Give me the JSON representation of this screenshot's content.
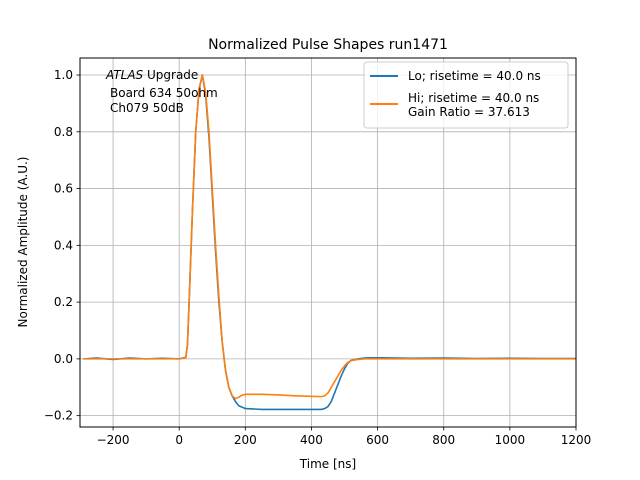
{
  "chart_data": {
    "type": "line",
    "title": "Normalized Pulse Shapes run1471",
    "xlabel": "Time [ns]",
    "ylabel": "Normalized Amplitude (A.U.)",
    "xlim": [
      -300,
      1200
    ],
    "ylim": [
      -0.24,
      1.06
    ],
    "xticks": [
      -200,
      0,
      200,
      400,
      600,
      800,
      1000,
      1200
    ],
    "xtick_labels": [
      "−200",
      "0",
      "200",
      "400",
      "600",
      "800",
      "1000",
      "1200"
    ],
    "yticks": [
      -0.2,
      0.0,
      0.2,
      0.4,
      0.6,
      0.8,
      1.0
    ],
    "ytick_labels": [
      "−0.2",
      "0.0",
      "0.2",
      "0.4",
      "0.6",
      "0.8",
      "1.0"
    ],
    "grid": true,
    "legend_position": "top-right",
    "annotation": {
      "line1_italic": "ATLAS",
      "line1_rest": " Upgrade",
      "line2": "Board 634 50ohm",
      "line3": "Ch079 50dB"
    },
    "series": [
      {
        "name": "Lo; risetime = 40.0 ns",
        "color": "#1f77b4",
        "x": [
          -290,
          -250,
          -200,
          -150,
          -100,
          -50,
          0,
          20,
          25,
          30,
          40,
          50,
          60,
          70,
          80,
          90,
          100,
          110,
          120,
          130,
          140,
          150,
          160,
          170,
          180,
          190,
          200,
          250,
          300,
          350,
          400,
          430,
          440,
          450,
          460,
          470,
          480,
          490,
          500,
          510,
          520,
          540,
          560,
          580,
          600,
          700,
          800,
          900,
          1000,
          1100,
          1200
        ],
        "y": [
          0.0,
          0.003,
          -0.002,
          0.003,
          0.0,
          0.002,
          0.0,
          0.005,
          0.05,
          0.2,
          0.52,
          0.8,
          0.95,
          1.0,
          0.93,
          0.78,
          0.58,
          0.38,
          0.2,
          0.06,
          -0.04,
          -0.1,
          -0.13,
          -0.15,
          -0.165,
          -0.17,
          -0.175,
          -0.178,
          -0.178,
          -0.178,
          -0.178,
          -0.178,
          -0.175,
          -0.168,
          -0.15,
          -0.12,
          -0.09,
          -0.06,
          -0.035,
          -0.015,
          -0.005,
          0.0,
          0.003,
          0.004,
          0.004,
          0.002,
          0.003,
          0.001,
          0.002,
          0.001,
          0.001
        ]
      },
      {
        "name": "Hi; risetime = 40.0 ns\n Gain Ratio = 37.613",
        "color": "#ff7f0e",
        "x": [
          -290,
          -250,
          -200,
          -150,
          -100,
          -50,
          0,
          20,
          25,
          30,
          40,
          50,
          60,
          70,
          80,
          90,
          100,
          110,
          120,
          130,
          140,
          150,
          160,
          170,
          180,
          190,
          200,
          250,
          300,
          350,
          400,
          430,
          440,
          450,
          460,
          470,
          480,
          490,
          500,
          510,
          520,
          540,
          560,
          580,
          600,
          700,
          800,
          900,
          1000,
          1100,
          1200
        ],
        "y": [
          0.0,
          0.0,
          0.0,
          0.0,
          0.0,
          0.0,
          0.0,
          0.005,
          0.05,
          0.2,
          0.52,
          0.8,
          0.95,
          1.0,
          0.94,
          0.8,
          0.6,
          0.4,
          0.22,
          0.06,
          -0.04,
          -0.1,
          -0.13,
          -0.14,
          -0.135,
          -0.128,
          -0.125,
          -0.125,
          -0.127,
          -0.13,
          -0.132,
          -0.133,
          -0.13,
          -0.12,
          -0.1,
          -0.08,
          -0.06,
          -0.04,
          -0.025,
          -0.012,
          -0.006,
          -0.002,
          0.0,
          0.0,
          0.0,
          0.0,
          0.0,
          0.0,
          0.0,
          0.0,
          0.0
        ]
      }
    ]
  }
}
